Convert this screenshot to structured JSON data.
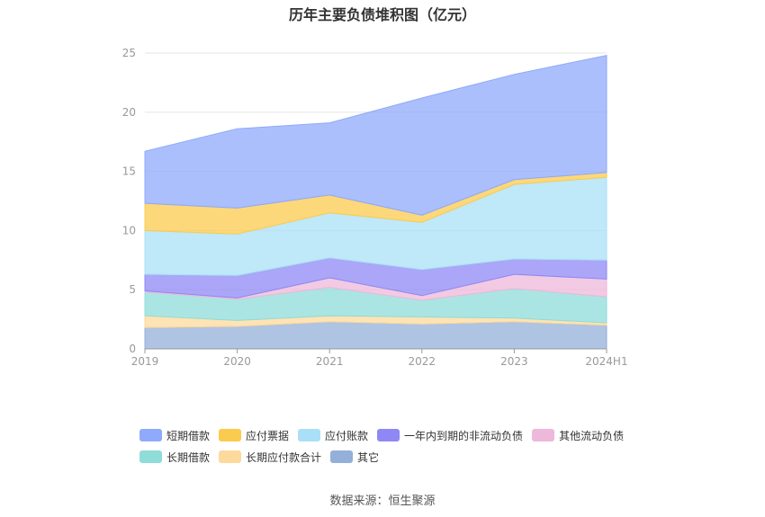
{
  "chart_data": {
    "type": "area",
    "stacked": true,
    "title": "历年主要负债堆积图（亿元）",
    "categories": [
      "2019",
      "2020",
      "2021",
      "2022",
      "2023",
      "2024H1"
    ],
    "ylim": [
      0,
      25
    ],
    "yticks": [
      "0",
      "5",
      "10",
      "15",
      "20",
      "25"
    ],
    "grid": true,
    "legend_position": "bottom",
    "series": [
      {
        "name": "其它",
        "color": "#94afd9",
        "values": [
          1.8,
          1.9,
          2.3,
          2.1,
          2.3,
          2.0
        ]
      },
      {
        "name": "长期应付款合计",
        "color": "#fdd99b",
        "values": [
          1.0,
          0.5,
          0.5,
          0.6,
          0.3,
          0.2
        ]
      },
      {
        "name": "长期借款",
        "color": "#8fdcd9",
        "values": [
          2.0,
          1.8,
          2.4,
          1.4,
          2.5,
          2.2
        ]
      },
      {
        "name": "其他流动负债",
        "color": "#edb8d9",
        "values": [
          0.1,
          0.1,
          0.8,
          0.4,
          1.2,
          1.5
        ]
      },
      {
        "name": "一年内到期的非流动负债",
        "color": "#8f88f4",
        "values": [
          1.4,
          1.9,
          1.7,
          2.2,
          1.3,
          1.6
        ]
      },
      {
        "name": "应付账款",
        "color": "#a9e0f7",
        "values": [
          3.7,
          3.5,
          3.8,
          4.0,
          6.3,
          7.0
        ]
      },
      {
        "name": "应付票据",
        "color": "#fbcb4d",
        "values": [
          2.3,
          2.2,
          1.5,
          0.6,
          0.4,
          0.4
        ]
      },
      {
        "name": "短期借款",
        "color": "#8fa9fb",
        "values": [
          4.4,
          6.7,
          6.1,
          9.9,
          8.9,
          9.9
        ]
      }
    ]
  },
  "legend_rows": [
    [
      {
        "label": "短期借款",
        "color": "#8fa9fb"
      },
      {
        "label": "应付票据",
        "color": "#fbcb4d"
      },
      {
        "label": "应付账款",
        "color": "#a9e0f7"
      },
      {
        "label": "一年内到期的非流动负债",
        "color": "#8f88f4"
      },
      {
        "label": "其他流动负债",
        "color": "#edb8d9"
      }
    ],
    [
      {
        "label": "长期借款",
        "color": "#8fdcd9"
      },
      {
        "label": "长期应付款合计",
        "color": "#fdd99b"
      },
      {
        "label": "其它",
        "color": "#94afd9"
      }
    ]
  ],
  "source": "数据来源：恒生聚源"
}
